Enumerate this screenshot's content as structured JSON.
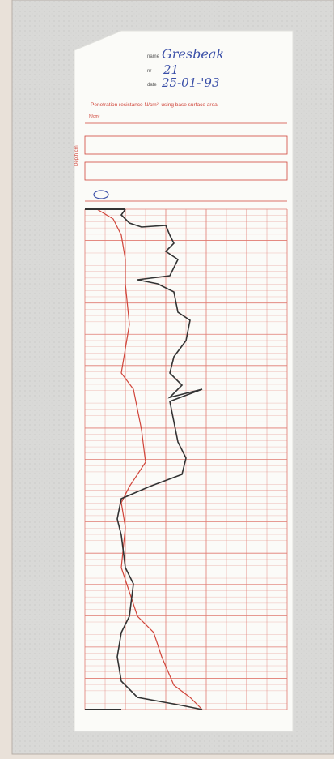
{
  "header": {
    "name_label": "name",
    "name": "Gresbeak",
    "nr_label": "nr",
    "nr": "21",
    "date_label": "date",
    "date": "25-01-'93"
  },
  "chart": {
    "title": "Penetration resistance N/cm², using base surface area",
    "unit_top": "N/cm²",
    "depth_label": "Depth cm"
  }
}
